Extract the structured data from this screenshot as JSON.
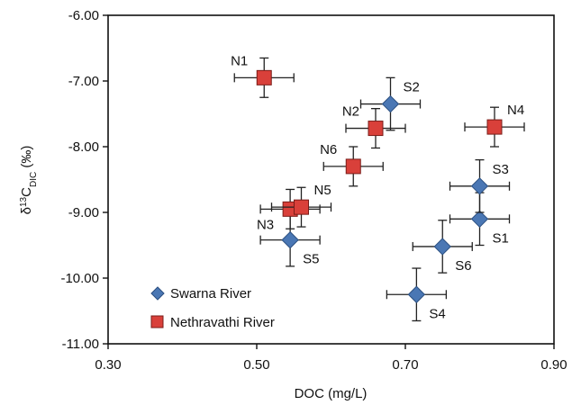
{
  "chart_data": {
    "type": "scatter",
    "title": "",
    "xlabel": "DOC (mg/L)",
    "ylabel": {
      "main": "δ",
      "sup": "13",
      "c": "C",
      "sub": "DIC",
      "unit": " (‰)"
    },
    "xlim": [
      0.3,
      0.9
    ],
    "ylim": [
      -11.0,
      -6.0
    ],
    "xticks": [
      0.3,
      0.5,
      0.7,
      0.9
    ],
    "yticks": [
      -6.0,
      -7.0,
      -8.0,
      -9.0,
      -10.0,
      -11.0
    ],
    "xtick_labels": [
      "0.30",
      "0.50",
      "0.70",
      "0.90"
    ],
    "ytick_labels": [
      "-6.00",
      "-7.00",
      "-8.00",
      "-9.00",
      "-10.00",
      "-11.00"
    ],
    "grid": false,
    "legend": "bottom-left inside",
    "series": [
      {
        "name": "Swarna River",
        "marker": "diamond",
        "color": "#4a77b4",
        "edge": "#2b4f80",
        "points": [
          {
            "label": "S1",
            "x": 0.8,
            "y": -9.1,
            "xerr": 0.04,
            "yerr": 0.4,
            "label_pos": "below-right"
          },
          {
            "label": "S2",
            "x": 0.68,
            "y": -7.35,
            "xerr": 0.04,
            "yerr": 0.4,
            "label_pos": "above-right"
          },
          {
            "label": "S3",
            "x": 0.8,
            "y": -8.6,
            "xerr": 0.04,
            "yerr": 0.4,
            "label_pos": "above-right"
          },
          {
            "label": "S4",
            "x": 0.715,
            "y": -10.25,
            "xerr": 0.04,
            "yerr": 0.4,
            "label_pos": "below-right"
          },
          {
            "label": "S5",
            "x": 0.545,
            "y": -9.42,
            "xerr": 0.04,
            "yerr": 0.4,
            "label_pos": "below-right"
          },
          {
            "label": "S6",
            "x": 0.75,
            "y": -9.52,
            "xerr": 0.04,
            "yerr": 0.4,
            "label_pos": "below-right"
          }
        ]
      },
      {
        "name": "Nethravathi River",
        "marker": "square",
        "color": "#d9403a",
        "edge": "#7a1c18",
        "points": [
          {
            "label": "N1",
            "x": 0.51,
            "y": -6.95,
            "xerr": 0.04,
            "yerr": 0.3,
            "label_pos": "above-left"
          },
          {
            "label": "N2",
            "x": 0.66,
            "y": -7.72,
            "xerr": 0.04,
            "yerr": 0.3,
            "label_pos": "above-left"
          },
          {
            "label": "N3",
            "x": 0.545,
            "y": -8.95,
            "xerr": 0.04,
            "yerr": 0.3,
            "label_pos": "below-left"
          },
          {
            "label": "N4",
            "x": 0.82,
            "y": -7.7,
            "xerr": 0.04,
            "yerr": 0.3,
            "label_pos": "above-right"
          },
          {
            "label": "N5",
            "x": 0.56,
            "y": -8.92,
            "xerr": 0.04,
            "yerr": 0.3,
            "label_pos": "above-right"
          },
          {
            "label": "N6",
            "x": 0.63,
            "y": -8.3,
            "xerr": 0.04,
            "yerr": 0.3,
            "label_pos": "above-left"
          }
        ]
      }
    ]
  }
}
